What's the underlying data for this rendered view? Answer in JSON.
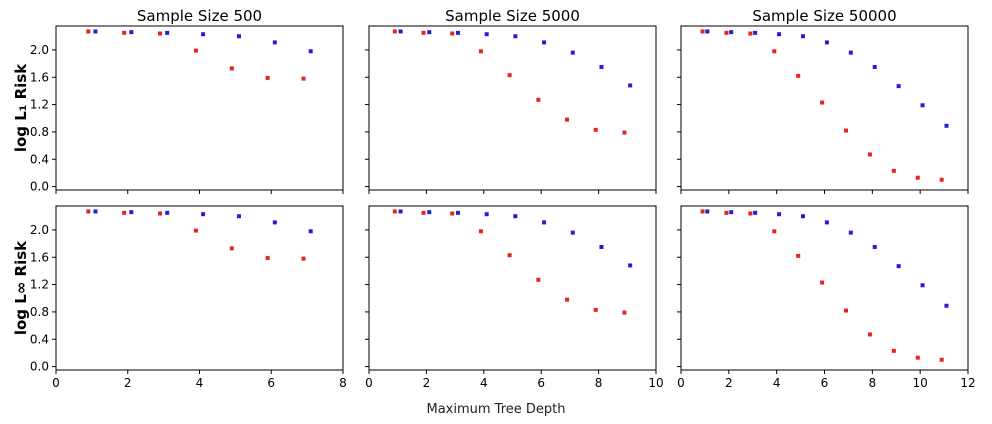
{
  "figure": {
    "xlabel": "Maximum Tree Depth",
    "row_labels": [
      "log L₁ Risk",
      "log L∞ Risk"
    ],
    "colors": {
      "red": "#e8231f",
      "blue": "#1f1fd6",
      "axis": "#000000"
    }
  },
  "chart_data": [
    {
      "type": "scatter",
      "title": "Sample Size 500",
      "row": 0,
      "col": 0,
      "xlim": [
        0,
        8
      ],
      "ylim": [
        -0.05,
        2.35
      ],
      "xticks": [
        0,
        2,
        4,
        6,
        8
      ],
      "yticks": [
        0.0,
        0.4,
        0.8,
        1.2,
        1.6,
        2.0
      ],
      "series": [
        {
          "color": "red",
          "x": [
            0.9,
            1.9,
            2.9,
            3.9,
            4.9,
            5.9,
            6.9
          ],
          "y": [
            2.27,
            2.25,
            2.24,
            1.99,
            1.73,
            1.59,
            1.58
          ]
        },
        {
          "color": "blue",
          "x": [
            1.1,
            2.1,
            3.1,
            4.1,
            5.1,
            6.1,
            7.1
          ],
          "y": [
            2.27,
            2.26,
            2.25,
            2.23,
            2.2,
            2.11,
            1.98
          ]
        }
      ]
    },
    {
      "type": "scatter",
      "title": "Sample Size 5000",
      "row": 0,
      "col": 1,
      "xlim": [
        0,
        10
      ],
      "ylim": [
        -0.05,
        2.35
      ],
      "xticks": [
        0,
        2,
        4,
        6,
        8,
        10
      ],
      "yticks": [
        0.0,
        0.4,
        0.8,
        1.2,
        1.6,
        2.0
      ],
      "series": [
        {
          "color": "red",
          "x": [
            0.9,
            1.9,
            2.9,
            3.9,
            4.9,
            5.9,
            6.9,
            7.9,
            8.9
          ],
          "y": [
            2.27,
            2.25,
            2.24,
            1.98,
            1.63,
            1.27,
            0.98,
            0.83,
            0.79
          ]
        },
        {
          "color": "blue",
          "x": [
            1.1,
            2.1,
            3.1,
            4.1,
            5.1,
            6.1,
            7.1,
            8.1,
            9.1
          ],
          "y": [
            2.27,
            2.26,
            2.25,
            2.23,
            2.2,
            2.11,
            1.96,
            1.75,
            1.48
          ]
        }
      ]
    },
    {
      "type": "scatter",
      "title": "Sample Size 50000",
      "row": 0,
      "col": 2,
      "xlim": [
        0,
        12
      ],
      "ylim": [
        -0.05,
        2.35
      ],
      "xticks": [
        0,
        2,
        4,
        6,
        8,
        10,
        12
      ],
      "yticks": [
        0.0,
        0.4,
        0.8,
        1.2,
        1.6,
        2.0
      ],
      "series": [
        {
          "color": "red",
          "x": [
            0.9,
            1.9,
            2.9,
            3.9,
            4.9,
            5.9,
            6.9,
            7.9,
            8.9,
            9.9,
            10.9
          ],
          "y": [
            2.27,
            2.25,
            2.24,
            1.98,
            1.62,
            1.23,
            0.82,
            0.47,
            0.23,
            0.13,
            0.1
          ]
        },
        {
          "color": "blue",
          "x": [
            1.1,
            2.1,
            3.1,
            4.1,
            5.1,
            6.1,
            7.1,
            8.1,
            9.1,
            10.1,
            11.1
          ],
          "y": [
            2.27,
            2.26,
            2.25,
            2.23,
            2.2,
            2.11,
            1.96,
            1.75,
            1.47,
            1.19,
            0.89
          ]
        }
      ]
    },
    {
      "type": "scatter",
      "title": "",
      "row": 1,
      "col": 0,
      "xlim": [
        0,
        8
      ],
      "ylim": [
        -0.05,
        2.35
      ],
      "xticks": [
        0,
        2,
        4,
        6,
        8
      ],
      "yticks": [
        0.0,
        0.4,
        0.8,
        1.2,
        1.6,
        2.0
      ],
      "series": [
        {
          "color": "red",
          "x": [
            0.9,
            1.9,
            2.9,
            3.9,
            4.9,
            5.9,
            6.9
          ],
          "y": [
            2.27,
            2.25,
            2.24,
            1.99,
            1.73,
            1.59,
            1.58
          ]
        },
        {
          "color": "blue",
          "x": [
            1.1,
            2.1,
            3.1,
            4.1,
            5.1,
            6.1,
            7.1
          ],
          "y": [
            2.27,
            2.26,
            2.25,
            2.23,
            2.2,
            2.11,
            1.98
          ]
        }
      ]
    },
    {
      "type": "scatter",
      "title": "",
      "row": 1,
      "col": 1,
      "xlim": [
        0,
        10
      ],
      "ylim": [
        -0.05,
        2.35
      ],
      "xticks": [
        0,
        2,
        4,
        6,
        8,
        10
      ],
      "yticks": [
        0.0,
        0.4,
        0.8,
        1.2,
        1.6,
        2.0
      ],
      "series": [
        {
          "color": "red",
          "x": [
            0.9,
            1.9,
            2.9,
            3.9,
            4.9,
            5.9,
            6.9,
            7.9,
            8.9
          ],
          "y": [
            2.27,
            2.25,
            2.24,
            1.98,
            1.63,
            1.27,
            0.98,
            0.83,
            0.79
          ]
        },
        {
          "color": "blue",
          "x": [
            1.1,
            2.1,
            3.1,
            4.1,
            5.1,
            6.1,
            7.1,
            8.1,
            9.1
          ],
          "y": [
            2.27,
            2.26,
            2.25,
            2.23,
            2.2,
            2.11,
            1.96,
            1.75,
            1.48
          ]
        }
      ]
    },
    {
      "type": "scatter",
      "title": "",
      "row": 1,
      "col": 2,
      "xlim": [
        0,
        12
      ],
      "ylim": [
        -0.05,
        2.35
      ],
      "xticks": [
        0,
        2,
        4,
        6,
        8,
        10,
        12
      ],
      "yticks": [
        0.0,
        0.4,
        0.8,
        1.2,
        1.6,
        2.0
      ],
      "series": [
        {
          "color": "red",
          "x": [
            0.9,
            1.9,
            2.9,
            3.9,
            4.9,
            5.9,
            6.9,
            7.9,
            8.9,
            9.9,
            10.9
          ],
          "y": [
            2.27,
            2.25,
            2.24,
            1.98,
            1.62,
            1.23,
            0.82,
            0.47,
            0.23,
            0.13,
            0.1
          ]
        },
        {
          "color": "blue",
          "x": [
            1.1,
            2.1,
            3.1,
            4.1,
            5.1,
            6.1,
            7.1,
            8.1,
            9.1,
            10.1,
            11.1
          ],
          "y": [
            2.27,
            2.26,
            2.25,
            2.23,
            2.2,
            2.11,
            1.96,
            1.75,
            1.47,
            1.19,
            0.89
          ]
        }
      ]
    }
  ]
}
